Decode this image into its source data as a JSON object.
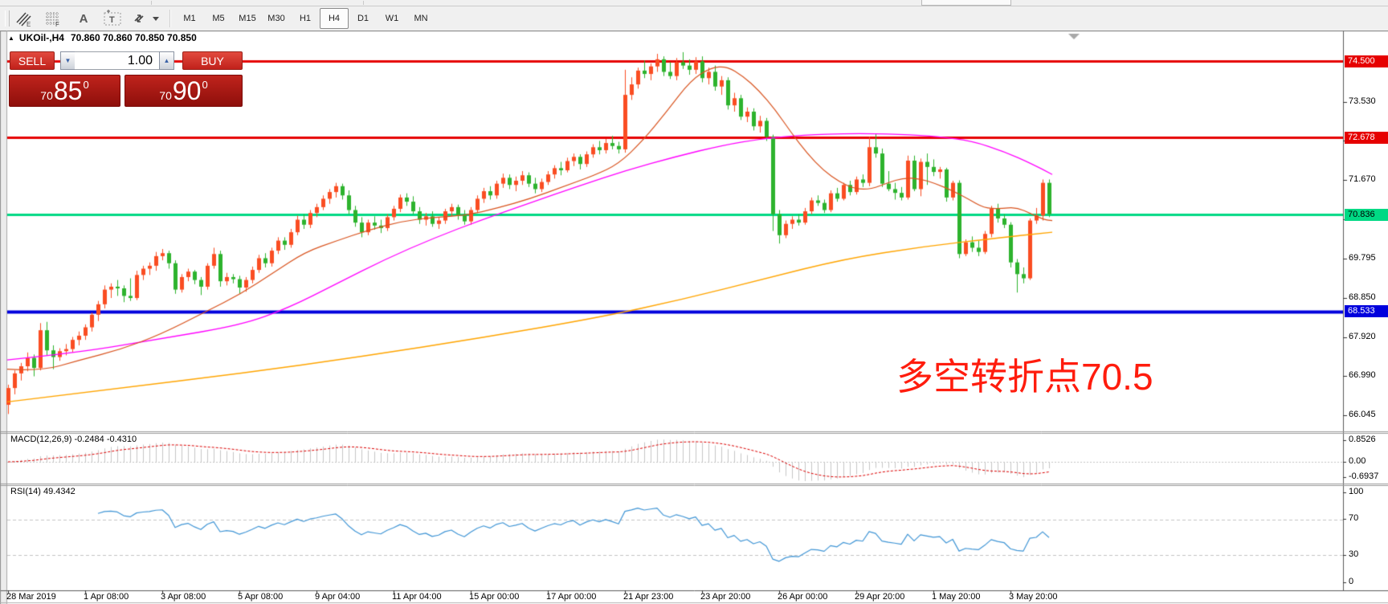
{
  "toolbar": {
    "icon_e": "E",
    "icon_f": "F",
    "icon_a": "A",
    "icon_t": "T",
    "timeframes": [
      "M1",
      "M5",
      "M15",
      "M30",
      "H1",
      "H4",
      "D1",
      "W1",
      "MN"
    ],
    "active_timeframe": "H4"
  },
  "quote_bar": {
    "collapse": "▲",
    "symbol": "UKOil-,H4",
    "ohlc": "70.860 70.860 70.850 70.850"
  },
  "trade_panel": {
    "sell_label": "SELL",
    "buy_label": "BUY",
    "volume": "1.00",
    "sell_price": {
      "prefix": "70",
      "big": "85",
      "sup": "0"
    },
    "buy_price": {
      "prefix": "70",
      "big": "90",
      "sup": "0"
    }
  },
  "annotation": {
    "text": "多空转折点70.5",
    "color": "#ff1c0d"
  },
  "chart_data": {
    "type": "candlestick",
    "symbol": "UKOil-",
    "period": "H4",
    "price_axis": {
      "ticks": [
        73.53,
        72.6,
        71.67,
        70.725,
        69.795,
        68.85,
        67.92,
        66.99,
        66.045
      ]
    },
    "hlines": [
      {
        "price": 74.5,
        "label": "74.500",
        "color": "#e60000",
        "text_color": "#ffffff",
        "width": 3
      },
      {
        "price": 72.678,
        "label": "72.678",
        "color": "#e60000",
        "text_color": "#ffffff",
        "width": 3
      },
      {
        "price": 70.836,
        "label": "70.836",
        "color": "#00d984",
        "text_color": "#000000",
        "width": 3
      },
      {
        "price": 68.533,
        "label": "68.533",
        "color": "#0000dd",
        "text_color": "#ffffff",
        "width": 4
      }
    ],
    "time_labels": [
      "28 Mar 2019",
      "1 Apr 08:00",
      "3 Apr 08:00",
      "5 Apr 08:00",
      "9 Apr 04:00",
      "11 Apr 04:00",
      "15 Apr 00:00",
      "17 Apr 00:00",
      "21 Apr 23:00",
      "23 Apr 20:00",
      "26 Apr 00:00",
      "29 Apr 20:00",
      "1 May 20:00",
      "3 May 20:00"
    ],
    "candles": [
      [
        66.3,
        66.78,
        66.08,
        66.7
      ],
      [
        66.7,
        67.12,
        66.55,
        67.05
      ],
      [
        67.05,
        67.3,
        66.88,
        67.22
      ],
      [
        67.22,
        67.55,
        67.1,
        67.42
      ],
      [
        67.42,
        67.5,
        66.98,
        67.18
      ],
      [
        67.18,
        68.25,
        67.12,
        68.08
      ],
      [
        68.08,
        68.28,
        67.48,
        67.6
      ],
      [
        67.6,
        67.72,
        67.15,
        67.44
      ],
      [
        67.44,
        67.65,
        67.35,
        67.58
      ],
      [
        67.58,
        67.75,
        67.48,
        67.63
      ],
      [
        67.63,
        67.92,
        67.55,
        67.85
      ],
      [
        67.85,
        68.05,
        67.72,
        67.95
      ],
      [
        67.95,
        68.22,
        67.85,
        68.15
      ],
      [
        68.15,
        68.5,
        68.05,
        68.45
      ],
      [
        68.45,
        68.78,
        68.3,
        68.7
      ],
      [
        68.7,
        69.15,
        68.6,
        69.05
      ],
      [
        69.05,
        69.2,
        68.85,
        69.12
      ],
      [
        69.12,
        69.28,
        68.9,
        69.08
      ],
      [
        69.08,
        69.15,
        68.75,
        68.9
      ],
      [
        68.9,
        69.32,
        68.78,
        68.85
      ],
      [
        68.85,
        69.5,
        68.8,
        69.4
      ],
      [
        69.4,
        69.62,
        69.28,
        69.55
      ],
      [
        69.55,
        69.7,
        69.4,
        69.62
      ],
      [
        69.62,
        69.95,
        69.5,
        69.85
      ],
      [
        69.85,
        70.02,
        69.75,
        69.92
      ],
      [
        69.92,
        69.98,
        69.55,
        69.68
      ],
      [
        69.68,
        69.75,
        68.95,
        69.05
      ],
      [
        69.05,
        69.42,
        68.98,
        69.35
      ],
      [
        69.35,
        69.55,
        69.25,
        69.48
      ],
      [
        69.48,
        69.52,
        69.18,
        69.28
      ],
      [
        69.28,
        69.35,
        68.92,
        69.12
      ],
      [
        69.12,
        69.68,
        69.05,
        69.62
      ],
      [
        69.62,
        70.05,
        69.55,
        69.9
      ],
      [
        69.9,
        69.98,
        69.12,
        69.25
      ],
      [
        69.25,
        69.45,
        69.15,
        69.35
      ],
      [
        69.35,
        69.42,
        69.2,
        69.3
      ],
      [
        69.3,
        69.38,
        68.95,
        69.1
      ],
      [
        69.1,
        69.35,
        69.0,
        69.28
      ],
      [
        69.28,
        69.6,
        69.2,
        69.52
      ],
      [
        69.52,
        69.88,
        69.45,
        69.8
      ],
      [
        69.8,
        69.92,
        69.58,
        69.68
      ],
      [
        69.68,
        70.05,
        69.6,
        69.98
      ],
      [
        69.98,
        70.3,
        69.9,
        70.22
      ],
      [
        70.22,
        70.3,
        70.0,
        70.12
      ],
      [
        70.12,
        70.5,
        70.05,
        70.42
      ],
      [
        70.42,
        70.82,
        70.35,
        70.72
      ],
      [
        70.72,
        70.85,
        70.5,
        70.6
      ],
      [
        70.6,
        70.95,
        70.52,
        70.88
      ],
      [
        70.88,
        71.1,
        70.78,
        71.02
      ],
      [
        71.02,
        71.3,
        70.95,
        71.22
      ],
      [
        71.22,
        71.45,
        71.1,
        71.38
      ],
      [
        71.38,
        71.6,
        71.25,
        71.52
      ],
      [
        71.52,
        71.58,
        71.2,
        71.3
      ],
      [
        71.3,
        71.42,
        70.85,
        70.95
      ],
      [
        70.95,
        71.05,
        70.55,
        70.65
      ],
      [
        70.65,
        70.78,
        70.3,
        70.42
      ],
      [
        70.42,
        70.72,
        70.35,
        70.65
      ],
      [
        70.65,
        70.8,
        70.48,
        70.58
      ],
      [
        70.58,
        70.72,
        70.4,
        70.52
      ],
      [
        70.52,
        70.85,
        70.45,
        70.78
      ],
      [
        70.78,
        71.05,
        70.7,
        70.98
      ],
      [
        70.98,
        71.32,
        70.9,
        71.25
      ],
      [
        71.25,
        71.35,
        71.05,
        71.15
      ],
      [
        71.15,
        71.28,
        70.85,
        70.92
      ],
      [
        70.92,
        71.02,
        70.62,
        70.72
      ],
      [
        70.72,
        70.88,
        70.58,
        70.8
      ],
      [
        70.8,
        70.92,
        70.55,
        70.62
      ],
      [
        70.62,
        70.78,
        70.5,
        70.7
      ],
      [
        70.7,
        70.98,
        70.62,
        70.92
      ],
      [
        70.92,
        71.1,
        70.8,
        71.02
      ],
      [
        71.02,
        71.08,
        70.72,
        70.82
      ],
      [
        70.82,
        70.95,
        70.6,
        70.68
      ],
      [
        70.68,
        71.02,
        70.6,
        70.95
      ],
      [
        70.95,
        71.3,
        70.88,
        71.22
      ],
      [
        71.22,
        71.48,
        71.12,
        71.4
      ],
      [
        71.4,
        71.52,
        71.2,
        71.3
      ],
      [
        71.3,
        71.65,
        71.22,
        71.58
      ],
      [
        71.58,
        71.82,
        71.48,
        71.72
      ],
      [
        71.72,
        71.8,
        71.45,
        71.55
      ],
      [
        71.55,
        71.75,
        71.4,
        71.65
      ],
      [
        71.65,
        71.88,
        71.55,
        71.78
      ],
      [
        71.78,
        71.85,
        71.5,
        71.58
      ],
      [
        71.58,
        71.72,
        71.35,
        71.45
      ],
      [
        71.45,
        71.7,
        71.38,
        71.62
      ],
      [
        71.62,
        71.88,
        71.55,
        71.8
      ],
      [
        71.8,
        72.02,
        71.7,
        71.95
      ],
      [
        71.95,
        72.1,
        71.78,
        71.9
      ],
      [
        71.9,
        72.2,
        71.85,
        72.12
      ],
      [
        72.12,
        72.3,
        72.0,
        72.22
      ],
      [
        72.22,
        72.28,
        71.92,
        72.05
      ],
      [
        72.05,
        72.35,
        71.98,
        72.28
      ],
      [
        72.28,
        72.52,
        72.2,
        72.45
      ],
      [
        72.45,
        72.6,
        72.28,
        72.38
      ],
      [
        72.38,
        72.65,
        72.3,
        72.55
      ],
      [
        72.55,
        72.72,
        72.4,
        72.48
      ],
      [
        72.48,
        72.58,
        72.3,
        72.4
      ],
      [
        72.4,
        74.3,
        72.32,
        73.7
      ],
      [
        73.7,
        74.12,
        73.58,
        73.95
      ],
      [
        73.95,
        74.35,
        73.85,
        74.28
      ],
      [
        74.28,
        74.52,
        74.1,
        74.2
      ],
      [
        74.2,
        74.45,
        74.05,
        74.38
      ],
      [
        74.38,
        74.68,
        74.25,
        74.55
      ],
      [
        74.55,
        74.62,
        74.15,
        74.25
      ],
      [
        74.25,
        74.48,
        74.08,
        74.15
      ],
      [
        74.15,
        74.58,
        74.05,
        74.48
      ],
      [
        74.48,
        74.72,
        74.32,
        74.4
      ],
      [
        74.4,
        74.55,
        74.18,
        74.3
      ],
      [
        74.3,
        74.6,
        74.2,
        74.5
      ],
      [
        74.5,
        74.62,
        74.0,
        74.1
      ],
      [
        74.1,
        74.35,
        73.95,
        74.25
      ],
      [
        74.25,
        74.4,
        73.8,
        73.9
      ],
      [
        73.9,
        74.15,
        73.7,
        74.05
      ],
      [
        74.05,
        74.12,
        73.35,
        73.45
      ],
      [
        73.45,
        73.75,
        73.3,
        73.62
      ],
      [
        73.62,
        73.7,
        73.1,
        73.18
      ],
      [
        73.18,
        73.4,
        73.05,
        73.3
      ],
      [
        73.3,
        73.38,
        72.85,
        72.95
      ],
      [
        72.95,
        73.2,
        72.8,
        73.08
      ],
      [
        73.08,
        73.15,
        72.6,
        72.7
      ],
      [
        72.7,
        72.75,
        70.45,
        70.85
      ],
      [
        70.85,
        70.95,
        70.15,
        70.35
      ],
      [
        70.35,
        70.7,
        70.28,
        70.62
      ],
      [
        70.62,
        70.8,
        70.5,
        70.72
      ],
      [
        70.72,
        70.85,
        70.58,
        70.65
      ],
      [
        70.65,
        71.0,
        70.6,
        70.92
      ],
      [
        70.92,
        71.25,
        70.85,
        71.18
      ],
      [
        71.18,
        71.3,
        71.05,
        71.12
      ],
      [
        71.12,
        71.2,
        70.88,
        70.95
      ],
      [
        70.95,
        71.42,
        70.9,
        71.35
      ],
      [
        71.35,
        71.48,
        71.15,
        71.22
      ],
      [
        71.22,
        71.6,
        71.18,
        71.55
      ],
      [
        71.55,
        71.65,
        71.3,
        71.38
      ],
      [
        71.38,
        71.75,
        71.32,
        71.68
      ],
      [
        71.68,
        71.8,
        71.5,
        71.6
      ],
      [
        71.6,
        72.7,
        71.52,
        72.45
      ],
      [
        72.45,
        72.78,
        72.2,
        72.3
      ],
      [
        72.3,
        72.42,
        71.5,
        71.58
      ],
      [
        71.58,
        71.88,
        71.4,
        71.45
      ],
      [
        71.45,
        71.6,
        71.2,
        71.36
      ],
      [
        71.36,
        71.5,
        71.18,
        71.25
      ],
      [
        71.25,
        72.25,
        71.2,
        72.13
      ],
      [
        72.13,
        72.25,
        71.4,
        71.45
      ],
      [
        71.45,
        72.18,
        71.28,
        72.1
      ],
      [
        72.1,
        72.3,
        71.55,
        71.98
      ],
      [
        71.98,
        72.16,
        71.76,
        71.86
      ],
      [
        71.86,
        71.98,
        71.7,
        71.92
      ],
      [
        71.92,
        71.96,
        71.15,
        71.25
      ],
      [
        71.25,
        71.65,
        71.18,
        71.6
      ],
      [
        71.6,
        71.66,
        69.8,
        69.9
      ],
      [
        69.9,
        70.25,
        69.85,
        70.18
      ],
      [
        70.18,
        70.32,
        69.95,
        70.05
      ],
      [
        70.05,
        70.22,
        69.85,
        69.95
      ],
      [
        69.95,
        70.45,
        69.9,
        70.38
      ],
      [
        70.38,
        71.05,
        70.3,
        70.98
      ],
      [
        70.98,
        71.1,
        70.65,
        70.75
      ],
      [
        70.75,
        70.85,
        70.52,
        70.6
      ],
      [
        70.6,
        70.66,
        69.58,
        69.7
      ],
      [
        69.7,
        69.78,
        68.98,
        69.42
      ],
      [
        69.42,
        69.58,
        69.2,
        69.32
      ],
      [
        69.32,
        70.75,
        69.28,
        70.7
      ],
      [
        70.7,
        71.0,
        70.62,
        70.82
      ],
      [
        70.82,
        71.68,
        70.7,
        71.6
      ],
      [
        71.6,
        71.68,
        70.78,
        70.85
      ]
    ],
    "ma_lines": {
      "fast_red": {
        "color": "#d9531e",
        "width": 1.2,
        "points": [
          [
            9,
            67.15
          ],
          [
            50,
            67.1
          ],
          [
            100,
            67.37
          ],
          [
            150,
            67.62
          ],
          [
            200,
            67.98
          ],
          [
            257,
            68.53
          ],
          [
            300,
            68.95
          ],
          [
            340,
            69.45
          ],
          [
            380,
            69.95
          ],
          [
            420,
            70.22
          ],
          [
            460,
            70.48
          ],
          [
            500,
            70.68
          ],
          [
            540,
            70.78
          ],
          [
            580,
            70.82
          ],
          [
            620,
            71.0
          ],
          [
            660,
            71.22
          ],
          [
            700,
            71.5
          ],
          [
            740,
            71.78
          ],
          [
            770,
            72.05
          ],
          [
            800,
            72.6
          ],
          [
            830,
            73.3
          ],
          [
            860,
            74.05
          ],
          [
            885,
            74.35
          ],
          [
            905,
            74.38
          ],
          [
            925,
            74.15
          ],
          [
            945,
            73.8
          ],
          [
            965,
            73.35
          ],
          [
            985,
            72.8
          ],
          [
            1005,
            72.3
          ],
          [
            1025,
            71.9
          ],
          [
            1045,
            71.62
          ],
          [
            1065,
            71.45
          ],
          [
            1085,
            71.45
          ],
          [
            1105,
            71.6
          ],
          [
            1125,
            71.72
          ],
          [
            1145,
            71.7
          ],
          [
            1165,
            71.58
          ],
          [
            1185,
            71.42
          ],
          [
            1205,
            71.22
          ],
          [
            1225,
            71.0
          ],
          [
            1245,
            70.98
          ],
          [
            1265,
            71.02
          ],
          [
            1285,
            70.85
          ],
          [
            1300,
            70.72
          ],
          [
            1310,
            70.7
          ]
        ]
      },
      "mid_magenta": {
        "color": "#ff00ff",
        "width": 1.3,
        "points": [
          [
            9,
            67.37
          ],
          [
            100,
            67.55
          ],
          [
            200,
            67.88
          ],
          [
            300,
            68.2
          ],
          [
            360,
            68.62
          ],
          [
            420,
            69.2
          ],
          [
            480,
            69.78
          ],
          [
            540,
            70.28
          ],
          [
            600,
            70.72
          ],
          [
            660,
            71.12
          ],
          [
            720,
            71.52
          ],
          [
            780,
            71.9
          ],
          [
            840,
            72.22
          ],
          [
            900,
            72.5
          ],
          [
            950,
            72.66
          ],
          [
            1000,
            72.74
          ],
          [
            1060,
            72.78
          ],
          [
            1120,
            72.76
          ],
          [
            1170,
            72.7
          ],
          [
            1210,
            72.6
          ],
          [
            1250,
            72.35
          ],
          [
            1285,
            72.05
          ],
          [
            1310,
            71.8
          ]
        ]
      },
      "slow_orange": {
        "color": "#ffa500",
        "width": 1.4,
        "points": [
          [
            9,
            66.37
          ],
          [
            150,
            66.7
          ],
          [
            300,
            67.05
          ],
          [
            450,
            67.45
          ],
          [
            600,
            67.9
          ],
          [
            750,
            68.4
          ],
          [
            850,
            68.82
          ],
          [
            950,
            69.3
          ],
          [
            1050,
            69.78
          ],
          [
            1150,
            70.08
          ],
          [
            1250,
            70.3
          ],
          [
            1310,
            70.42
          ]
        ]
      }
    },
    "macd": {
      "label": "MACD(12,26,9)",
      "values": "-0.2484 -0.4310",
      "scale": [
        "0.8526",
        "0.00",
        "-0.6937"
      ]
    },
    "rsi": {
      "label": "RSI(14)",
      "value": "49.4342",
      "scale": [
        "100",
        "70",
        "30",
        "0"
      ],
      "levels": [
        70,
        30
      ]
    },
    "colors": {
      "up": "#fa4d22",
      "down": "#2db32d",
      "macd_bar": "#c6c6c6",
      "macd_signal": "#dd0000",
      "rsi": "#4196d6",
      "dash": "#c4c4c4"
    }
  }
}
